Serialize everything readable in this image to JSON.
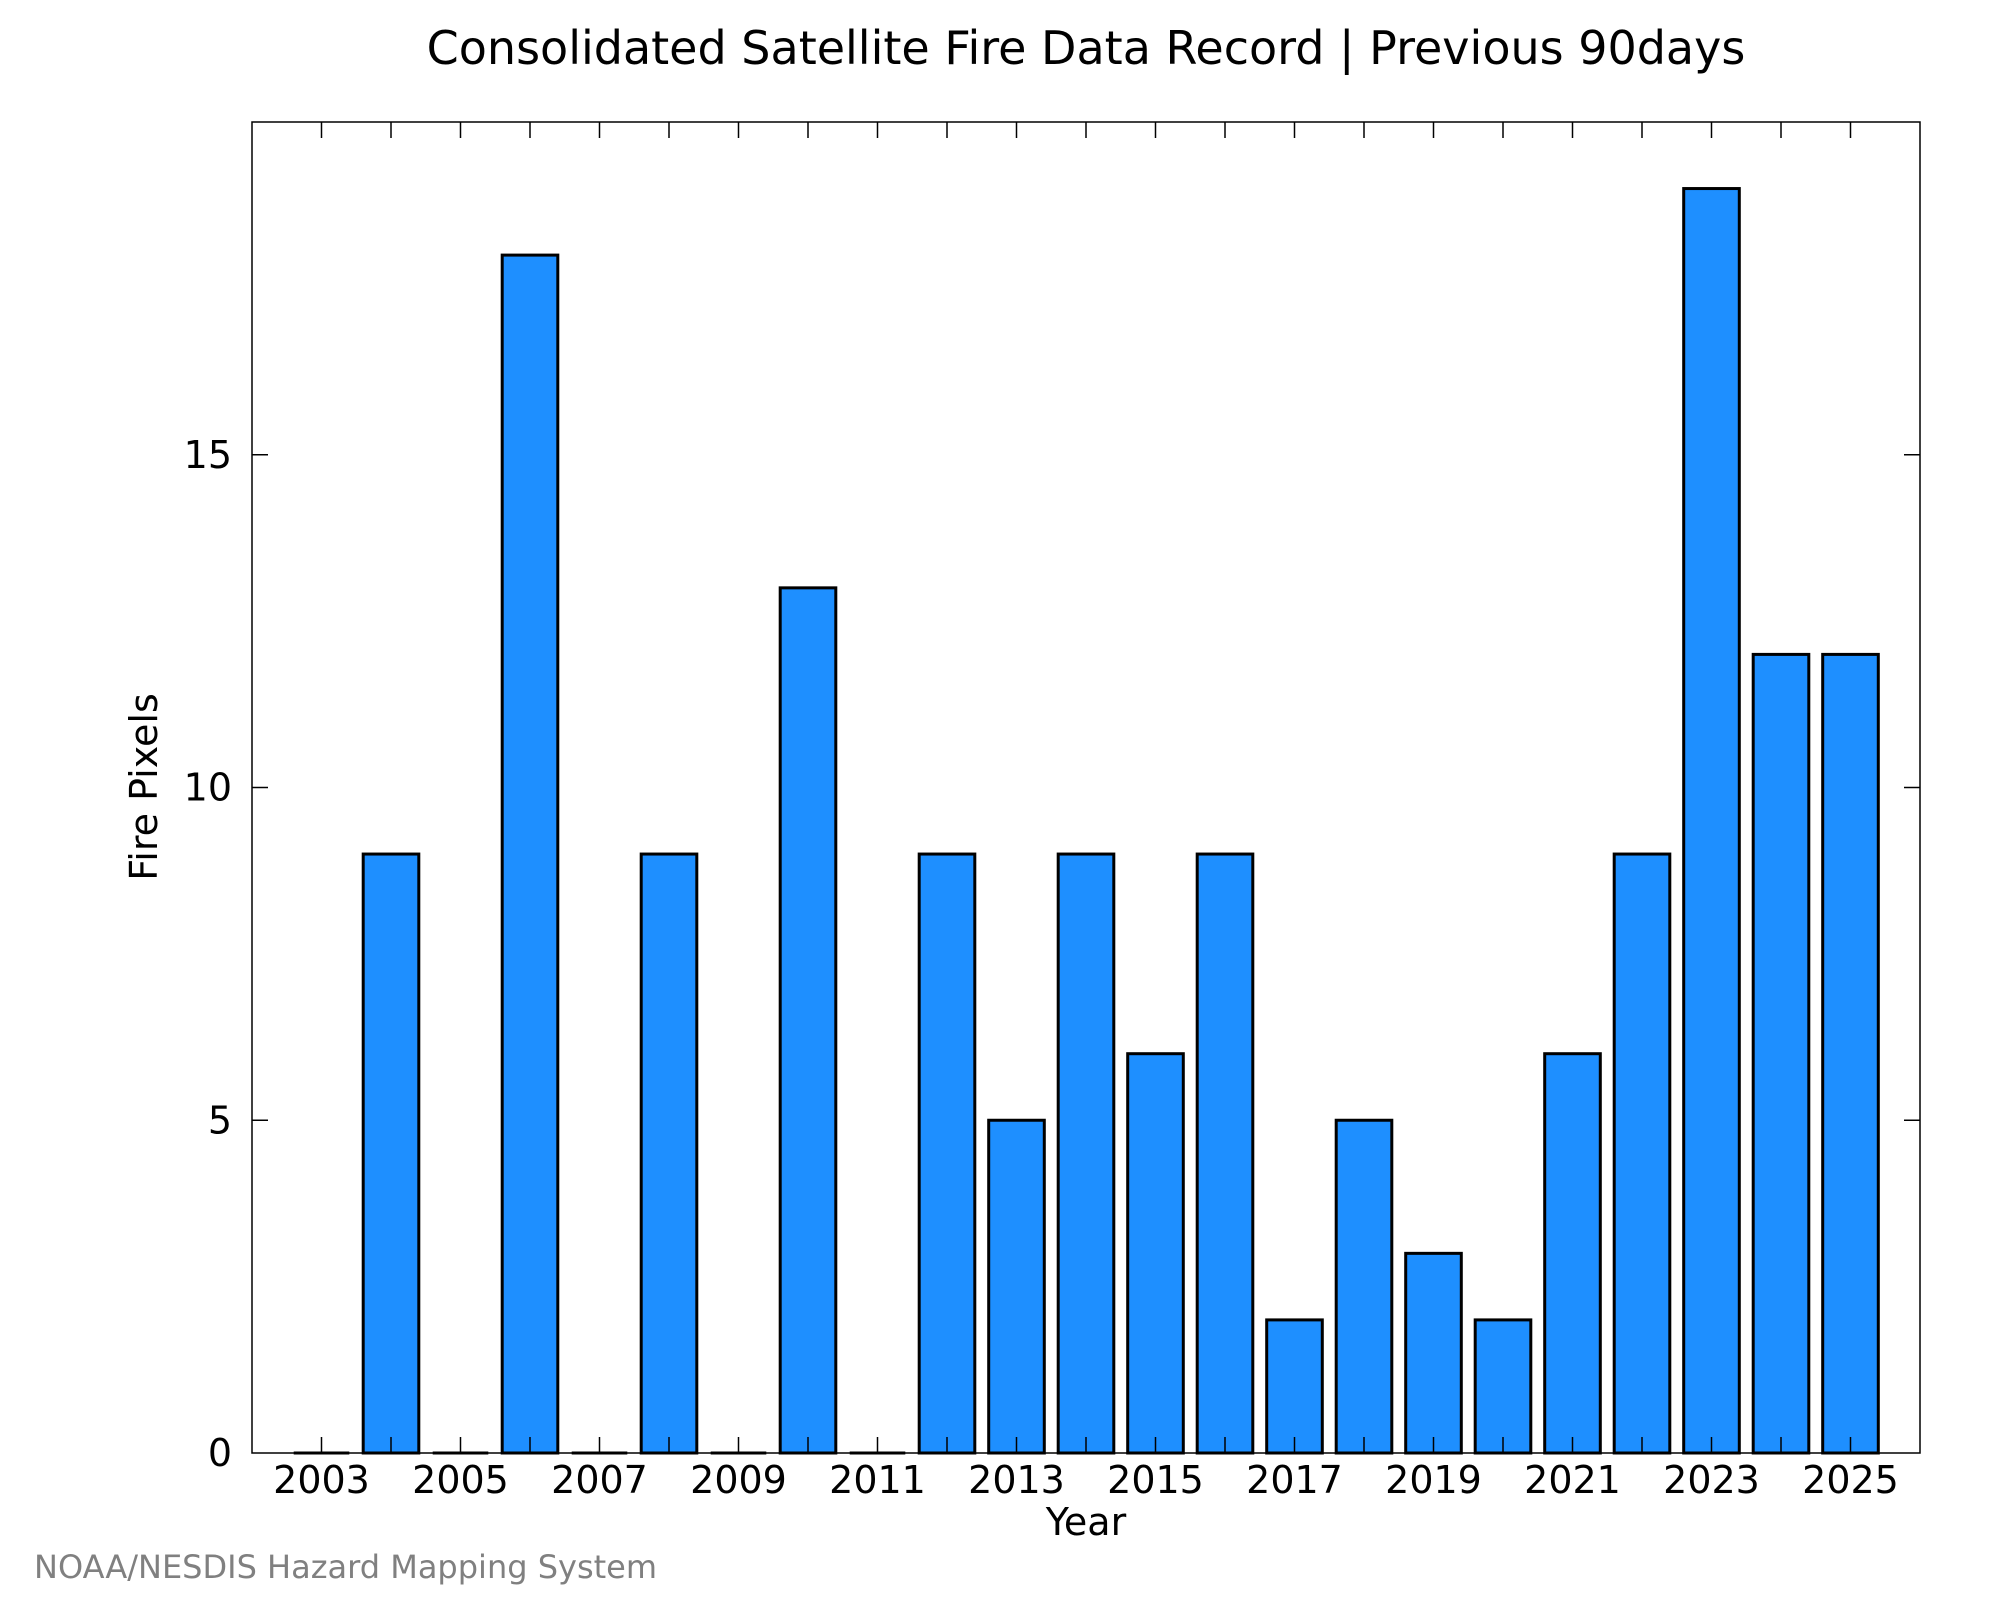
{
  "chart_data": {
    "type": "bar",
    "title": "Consolidated Satellite Fire Data Record | Previous 90days",
    "xlabel": "Year",
    "ylabel": "Fire Pixels",
    "categories": [
      "2003",
      "2004",
      "2005",
      "2006",
      "2007",
      "2008",
      "2009",
      "2010",
      "2011",
      "2012",
      "2013",
      "2014",
      "2015",
      "2016",
      "2017",
      "2018",
      "2019",
      "2020",
      "2021",
      "2022",
      "2023",
      "2024",
      "2025"
    ],
    "values": [
      0,
      9,
      0,
      18,
      0,
      9,
      0,
      13,
      0,
      9,
      5,
      9,
      6,
      9,
      2,
      5,
      3,
      2,
      6,
      9,
      19,
      12,
      12
    ],
    "x_tick_labels": [
      "2003",
      "2005",
      "2007",
      "2009",
      "2011",
      "2013",
      "2015",
      "2017",
      "2019",
      "2021",
      "2023",
      "2025"
    ],
    "y_ticks": [
      "0",
      "5",
      "10",
      "15"
    ],
    "y_tick_values": [
      0,
      5,
      10,
      15
    ],
    "ylim": [
      0,
      20
    ],
    "xlim": [
      2002,
      2026
    ],
    "grid": false,
    "bar_color": "#1e8fff",
    "bar_edge_color": "#000000"
  },
  "credit": "NOAA/NESDIS Hazard Mapping System"
}
